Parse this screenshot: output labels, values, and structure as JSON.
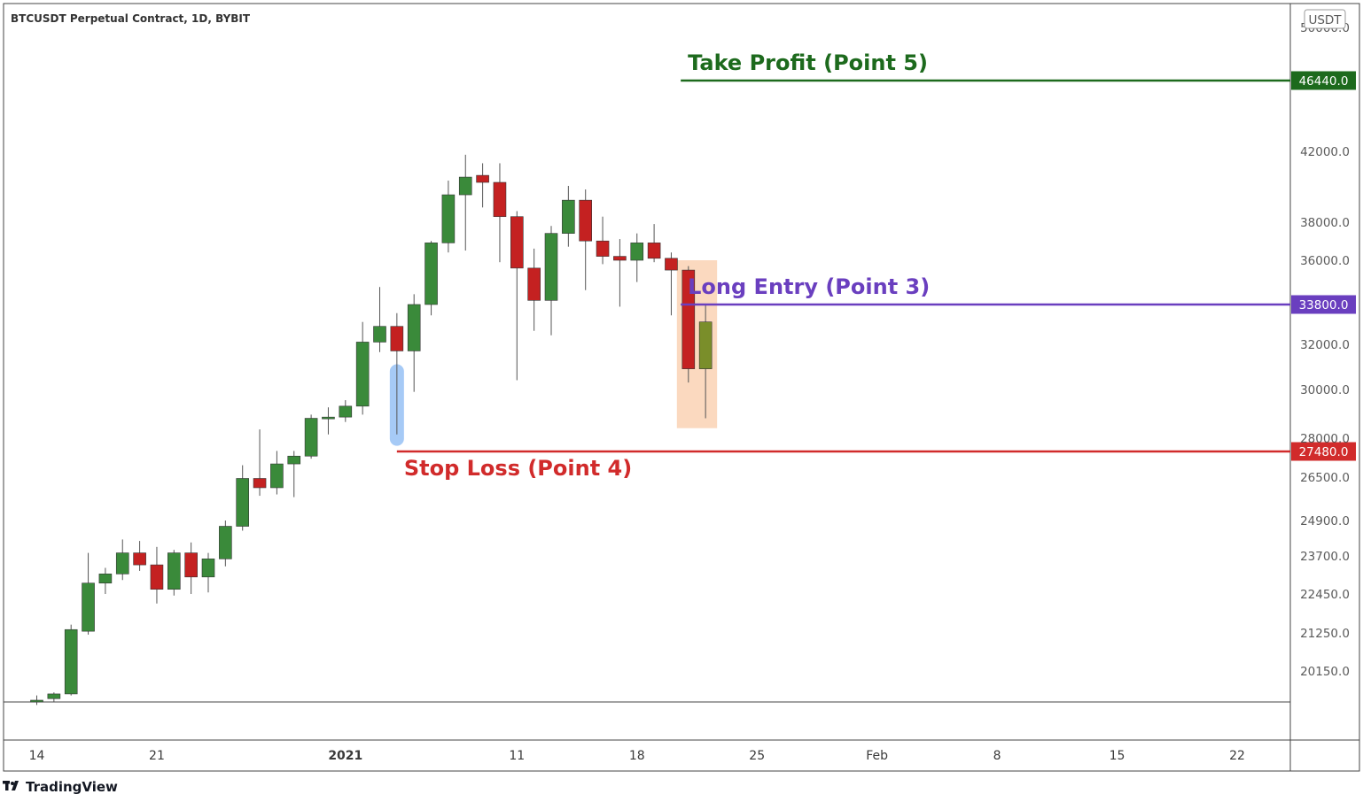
{
  "chart_data": {
    "type": "candlestick",
    "title": "BTCUSDT Perpetual Contract, 1D, BYBIT",
    "currency": "USDT",
    "y_ticks": [
      "50000.0",
      "42000.0",
      "38000.0",
      "36000.0",
      "32000.0",
      "30000.0",
      "28000.0",
      "26500.0",
      "24900.0",
      "23700.0",
      "22450.0",
      "21250.0",
      "20150.0"
    ],
    "y_tick_values": [
      50000,
      42000,
      38000,
      36000,
      32000,
      30000,
      28000,
      26500,
      24900,
      23700,
      22450,
      21250,
      20150
    ],
    "x_ticks": [
      {
        "label": "14",
        "date": "2020-12-14",
        "bold": false
      },
      {
        "label": "21",
        "date": "2020-12-21",
        "bold": false
      },
      {
        "label": "2021",
        "date": "2021-01-01",
        "bold": true
      },
      {
        "label": "11",
        "date": "2021-01-11",
        "bold": false
      },
      {
        "label": "18",
        "date": "2021-01-18",
        "bold": false
      },
      {
        "label": "25",
        "date": "2021-01-25",
        "bold": false
      },
      {
        "label": "Feb",
        "date": "2021-02-01",
        "bold": false
      },
      {
        "label": "8",
        "date": "2021-02-08",
        "bold": false
      },
      {
        "label": "15",
        "date": "2021-02-15",
        "bold": false
      },
      {
        "label": "22",
        "date": "2021-02-22",
        "bold": false
      }
    ],
    "colors": {
      "up": "#3a8a3a",
      "down": "#c42121",
      "wick": "#555555",
      "take_profit": "#1d6a1d",
      "entry": "#6a3fbf",
      "stop_loss": "#d12b2b",
      "entry_zone": "#f9ccaa",
      "signal_marker": "#9cc4f5",
      "olive_candle": "#7a8e2a"
    },
    "candles": [
      {
        "date": "2020-12-14",
        "open": 19150,
        "high": 19350,
        "low": 19050,
        "close": 19200
      },
      {
        "date": "2020-12-15",
        "open": 19250,
        "high": 19450,
        "low": 19150,
        "close": 19400
      },
      {
        "date": "2020-12-16",
        "open": 19400,
        "high": 21500,
        "low": 19350,
        "close": 21350
      },
      {
        "date": "2020-12-17",
        "open": 21300,
        "high": 23800,
        "low": 21200,
        "close": 22800
      },
      {
        "date": "2020-12-18",
        "open": 22800,
        "high": 23300,
        "low": 22450,
        "close": 23100
      },
      {
        "date": "2020-12-19",
        "open": 23100,
        "high": 24250,
        "low": 22900,
        "close": 23800
      },
      {
        "date": "2020-12-20",
        "open": 23800,
        "high": 24200,
        "low": 23200,
        "close": 23400
      },
      {
        "date": "2020-12-21",
        "open": 23400,
        "high": 24000,
        "low": 22150,
        "close": 22600
      },
      {
        "date": "2020-12-22",
        "open": 22600,
        "high": 23900,
        "low": 22400,
        "close": 23800
      },
      {
        "date": "2020-12-23",
        "open": 23800,
        "high": 24150,
        "low": 22450,
        "close": 23000
      },
      {
        "date": "2020-12-24",
        "open": 23000,
        "high": 23800,
        "low": 22500,
        "close": 23600
      },
      {
        "date": "2020-12-25",
        "open": 23600,
        "high": 24900,
        "low": 23350,
        "close": 24700
      },
      {
        "date": "2020-12-26",
        "open": 24700,
        "high": 26950,
        "low": 24550,
        "close": 26450
      },
      {
        "date": "2020-12-27",
        "open": 26450,
        "high": 28350,
        "low": 25800,
        "close": 26100
      },
      {
        "date": "2020-12-28",
        "open": 26100,
        "high": 27500,
        "low": 25850,
        "close": 27000
      },
      {
        "date": "2020-12-29",
        "open": 27000,
        "high": 27500,
        "low": 25750,
        "close": 27300
      },
      {
        "date": "2020-12-30",
        "open": 27300,
        "high": 28950,
        "low": 27200,
        "close": 28800
      },
      {
        "date": "2020-12-31",
        "open": 28800,
        "high": 29250,
        "low": 28150,
        "close": 28850
      },
      {
        "date": "2021-01-01",
        "open": 28850,
        "high": 29550,
        "low": 28650,
        "close": 29300
      },
      {
        "date": "2021-01-02",
        "open": 29300,
        "high": 33000,
        "low": 28950,
        "close": 32100
      },
      {
        "date": "2021-01-03",
        "open": 32100,
        "high": 34650,
        "low": 31650,
        "close": 32800
      },
      {
        "date": "2021-01-04",
        "open": 32800,
        "high": 33400,
        "low": 28150,
        "close": 31700
      },
      {
        "date": "2021-01-05",
        "open": 31700,
        "high": 34300,
        "low": 29900,
        "close": 33800
      },
      {
        "date": "2021-01-06",
        "open": 33800,
        "high": 37000,
        "low": 33300,
        "close": 36900
      },
      {
        "date": "2021-01-07",
        "open": 36900,
        "high": 40300,
        "low": 36400,
        "close": 39500
      },
      {
        "date": "2021-01-08",
        "open": 39500,
        "high": 41800,
        "low": 36500,
        "close": 40500
      },
      {
        "date": "2021-01-09",
        "open": 40600,
        "high": 41300,
        "low": 38800,
        "close": 40200
      },
      {
        "date": "2021-01-10",
        "open": 40200,
        "high": 41300,
        "low": 35900,
        "close": 38300
      },
      {
        "date": "2021-01-11",
        "open": 38300,
        "high": 38600,
        "low": 30400,
        "close": 35600
      },
      {
        "date": "2021-01-12",
        "open": 35600,
        "high": 36600,
        "low": 32600,
        "close": 34000
      },
      {
        "date": "2021-01-13",
        "open": 34000,
        "high": 37800,
        "low": 32400,
        "close": 37400
      },
      {
        "date": "2021-01-14",
        "open": 37400,
        "high": 40000,
        "low": 36700,
        "close": 39200
      },
      {
        "date": "2021-01-15",
        "open": 39200,
        "high": 39800,
        "low": 34500,
        "close": 37000
      },
      {
        "date": "2021-01-16",
        "open": 37000,
        "high": 38300,
        "low": 35800,
        "close": 36200
      },
      {
        "date": "2021-01-17",
        "open": 36200,
        "high": 37100,
        "low": 33700,
        "close": 36000
      },
      {
        "date": "2021-01-18",
        "open": 36000,
        "high": 37400,
        "low": 34900,
        "close": 36900
      },
      {
        "date": "2021-01-19",
        "open": 36900,
        "high": 37900,
        "low": 35900,
        "close": 36100
      },
      {
        "date": "2021-01-20",
        "open": 36100,
        "high": 36400,
        "low": 33300,
        "close": 35500
      },
      {
        "date": "2021-01-21",
        "open": 35500,
        "high": 35700,
        "low": 30300,
        "close": 30900
      },
      {
        "date": "2021-01-22",
        "open": 30900,
        "high": 33800,
        "low": 28800,
        "close": 33000
      }
    ],
    "annotations": [
      {
        "label": "Take Profit (Point 5)",
        "price": 46440,
        "badge": "46440.0",
        "start_date": "2021-01-22"
      },
      {
        "label": "Long Entry (Point 3)",
        "price": 33800,
        "badge": "33800.0",
        "start_date": "2021-01-22"
      },
      {
        "label": "Stop Loss (Point 4)",
        "price": 27480,
        "badge": "27480.0",
        "start_date": "2021-01-04"
      }
    ],
    "entry_zone": {
      "start_date": "2021-01-21",
      "end_date": "2021-01-22",
      "low": 28400,
      "high": 36000
    },
    "signal_marker": {
      "date": "2021-01-04",
      "low": 27700,
      "high": 31100
    }
  },
  "branding": {
    "logo_text": "TradingView"
  }
}
